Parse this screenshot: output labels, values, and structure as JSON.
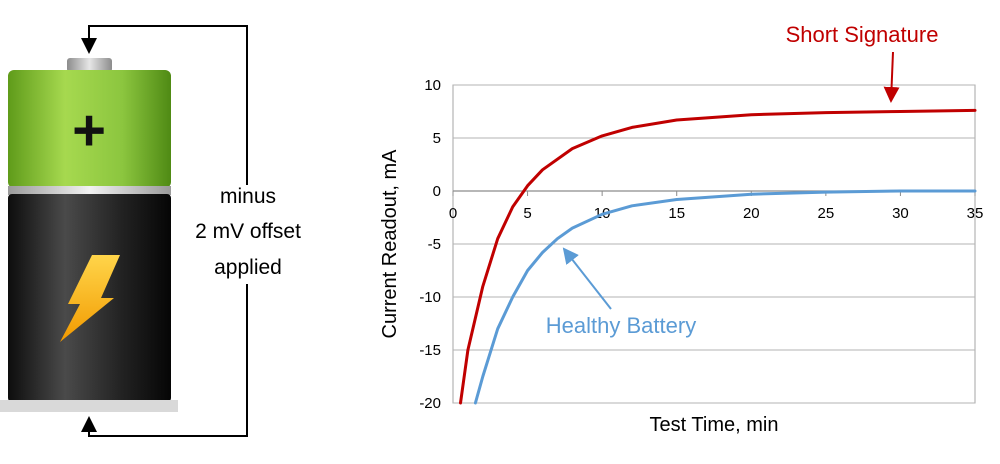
{
  "battery": {
    "plus_symbol": "+",
    "colors": {
      "top_green": "#8cc63f",
      "body_black": "#1a1a1a",
      "bolt": "#f7b500",
      "cap": "#b5b5b5"
    }
  },
  "circuit": {
    "note_lines": [
      "minus",
      "2 mV offset",
      "applied"
    ]
  },
  "chart_data": {
    "type": "line",
    "xlabel": "Test Time, min",
    "ylabel": "Current Readout, mA",
    "xlim": [
      0,
      35
    ],
    "ylim": [
      -20,
      10
    ],
    "xticks": [
      0,
      5,
      10,
      15,
      20,
      25,
      30,
      35
    ],
    "yticks": [
      10,
      5,
      0,
      -5,
      -10,
      -15,
      -20
    ],
    "grid": "horizontal",
    "series": [
      {
        "name": "Short Signature",
        "color": "#c00000",
        "x": [
          0.5,
          1,
          2,
          3,
          4,
          5,
          6,
          8,
          10,
          12,
          15,
          20,
          25,
          30,
          35
        ],
        "values": [
          -20,
          -15,
          -9,
          -4.5,
          -1.5,
          0.5,
          2,
          4,
          5.2,
          6,
          6.7,
          7.2,
          7.4,
          7.5,
          7.6
        ]
      },
      {
        "name": "Healthy Battery",
        "color": "#5b9bd5",
        "x": [
          1.5,
          2,
          3,
          4,
          5,
          6,
          7,
          8,
          10,
          12,
          15,
          20,
          25,
          30,
          35
        ],
        "values": [
          -20,
          -17.5,
          -13,
          -10,
          -7.5,
          -5.8,
          -4.5,
          -3.5,
          -2.2,
          -1.4,
          -0.8,
          -0.3,
          -0.1,
          0,
          0
        ]
      }
    ],
    "annotations": [
      {
        "text": "Short Signature",
        "color": "#c00000"
      },
      {
        "text": "Healthy Battery",
        "color": "#5b9bd5"
      }
    ]
  }
}
